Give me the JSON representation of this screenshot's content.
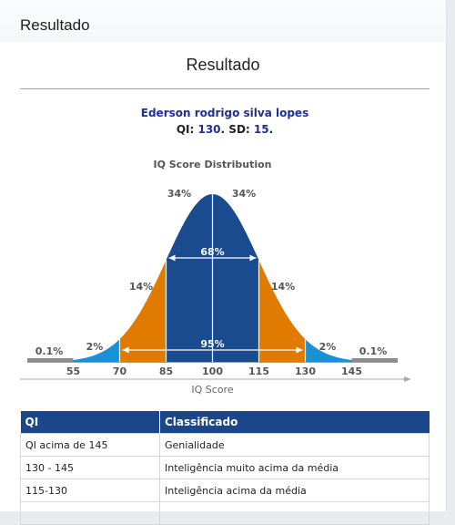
{
  "window": {
    "title": "Resultado"
  },
  "page": {
    "heading": "Resultado",
    "person_name": "Ederson rodrigo silva lopes",
    "qi_label": "QI:",
    "qi_value": "130",
    "sd_label": "SD:",
    "sd_value": "15",
    "period": "."
  },
  "chart_data": {
    "type": "area",
    "title": "IQ Score Distribution",
    "xlabel": "IQ Score",
    "ylabel": "",
    "x_ticks": [
      "55",
      "70",
      "85",
      "100",
      "115",
      "130",
      "145"
    ],
    "x_tick_values": [
      55,
      70,
      85,
      100,
      115,
      130,
      145
    ],
    "mean": 100,
    "sd": 15,
    "bands": [
      {
        "from": 40,
        "to": 55,
        "label": "0.1%",
        "color": "#8c8c8c"
      },
      {
        "from": 55,
        "to": 70,
        "label": "2%",
        "color": "#1a91d6"
      },
      {
        "from": 70,
        "to": 85,
        "label": "14%",
        "color": "#e07a00"
      },
      {
        "from": 85,
        "to": 100,
        "label": "34%",
        "color": "#1b4b8f"
      },
      {
        "from": 100,
        "to": 115,
        "label": "34%",
        "color": "#1b4b8f"
      },
      {
        "from": 115,
        "to": 130,
        "label": "14%",
        "color": "#e07a00"
      },
      {
        "from": 130,
        "to": 145,
        "label": "2%",
        "color": "#1a91d6"
      },
      {
        "from": 145,
        "to": 160,
        "label": "0.1%",
        "color": "#8c8c8c"
      }
    ],
    "annotations": [
      {
        "label": "68%",
        "from": 85,
        "to": 115
      },
      {
        "label": "95%",
        "from": 70,
        "to": 130
      }
    ]
  },
  "table": {
    "headers": [
      "QI",
      "Classificado"
    ],
    "rows": [
      [
        "QI acima de 145",
        "Genialidade"
      ],
      [
        "130 - 145",
        "Inteligência muito acima da média"
      ],
      [
        "115-130",
        "Inteligência acima da média"
      ],
      [
        "",
        ""
      ]
    ]
  }
}
